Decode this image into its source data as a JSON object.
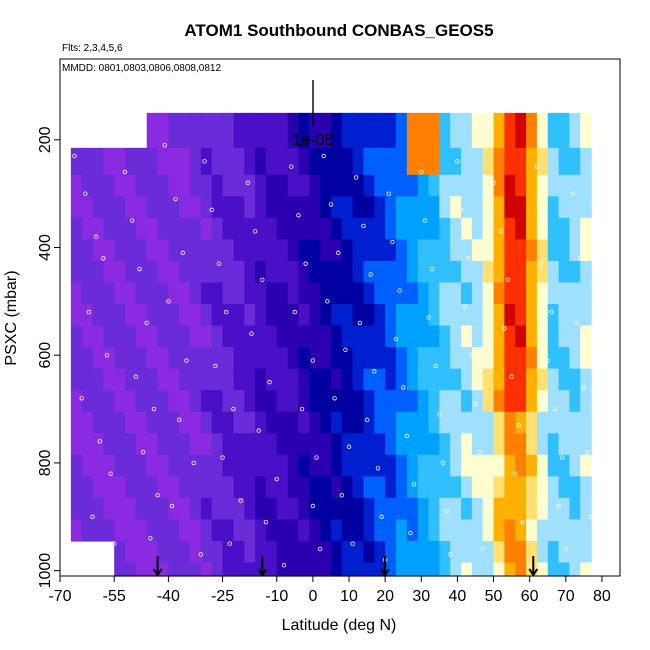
{
  "chart_data": {
    "type": "heatmap",
    "title": "ATOM1 Southbound CONBAS_GEOS5",
    "flights_label": "Flts: 2,3,4,5,6",
    "dates_label": "MMDD: 0801,0803,0806,0808,0812",
    "xlabel": "Latitude (deg N)",
    "ylabel": "PSXC (mbar)",
    "xlim": [
      -70,
      85
    ],
    "ylim": [
      1010,
      50
    ],
    "y_reversed": true,
    "x_ticks": [
      -70,
      -55,
      -40,
      -25,
      -10,
      0,
      10,
      20,
      30,
      40,
      50,
      60,
      70,
      80
    ],
    "y_ticks": [
      200,
      400,
      600,
      800,
      1000
    ],
    "scale_label": "1e-08",
    "marker_latitudes": [
      -43,
      -14,
      20,
      61
    ],
    "colormap": [
      "#8a2be2",
      "#6a2bd8",
      "#4a10c8",
      "#2a00b0",
      "#0000a0",
      "#0020d0",
      "#0060ff",
      "#00a0ff",
      "#30c0ff",
      "#a0e0ff",
      "#ffffd0",
      "#ffe070",
      "#ffb000",
      "#ff8000",
      "#ff3000",
      "#d00000"
    ],
    "color_value_range": [
      0,
      15
    ],
    "lat_bins": [
      -70,
      -67,
      -64,
      -61,
      -58,
      -55,
      -52,
      -49,
      -46,
      -43,
      -40,
      -37,
      -34,
      -31,
      -28,
      -25,
      -22,
      -19,
      -16,
      -13,
      -10,
      -7,
      -4,
      -1,
      2,
      5,
      8,
      11,
      14,
      17,
      20,
      23,
      26,
      29,
      32,
      35,
      38,
      41,
      44,
      47,
      50,
      53,
      56,
      59,
      62,
      65,
      68,
      71,
      74,
      77,
      80,
      83
    ],
    "pressure_bins": [
      150,
      215,
      265,
      305,
      345,
      385,
      425,
      465,
      505,
      545,
      585,
      625,
      665,
      705,
      745,
      785,
      825,
      865,
      905,
      945,
      985,
      1010
    ],
    "valid_lat_range": [
      -67,
      78
    ],
    "valid_pressure_range": [
      150,
      1010
    ],
    "data_points": [
      [
        -66,
        230
      ],
      [
        -63,
        300
      ],
      [
        -60,
        380
      ],
      [
        -58,
        420
      ],
      [
        -62,
        520
      ],
      [
        -57,
        600
      ],
      [
        -64,
        680
      ],
      [
        -59,
        760
      ],
      [
        -56,
        820
      ],
      [
        -61,
        900
      ],
      [
        -55,
        950
      ],
      [
        -52,
        260
      ],
      [
        -50,
        350
      ],
      [
        -48,
        440
      ],
      [
        -46,
        540
      ],
      [
        -49,
        640
      ],
      [
        -44,
        700
      ],
      [
        -47,
        780
      ],
      [
        -43,
        860
      ],
      [
        -45,
        940
      ],
      [
        -41,
        210
      ],
      [
        -38,
        310
      ],
      [
        -36,
        410
      ],
      [
        -40,
        500
      ],
      [
        -35,
        610
      ],
      [
        -37,
        720
      ],
      [
        -33,
        800
      ],
      [
        -39,
        880
      ],
      [
        -31,
        970
      ],
      [
        -30,
        240
      ],
      [
        -28,
        330
      ],
      [
        -26,
        430
      ],
      [
        -24,
        520
      ],
      [
        -27,
        620
      ],
      [
        -22,
        700
      ],
      [
        -25,
        790
      ],
      [
        -20,
        870
      ],
      [
        -23,
        950
      ],
      [
        -18,
        280
      ],
      [
        -16,
        370
      ],
      [
        -14,
        460
      ],
      [
        -17,
        560
      ],
      [
        -12,
        650
      ],
      [
        -15,
        740
      ],
      [
        -10,
        830
      ],
      [
        -13,
        910
      ],
      [
        -8,
        990
      ],
      [
        -6,
        250
      ],
      [
        -4,
        340
      ],
      [
        -2,
        430
      ],
      [
        -5,
        520
      ],
      [
        0,
        610
      ],
      [
        -3,
        700
      ],
      [
        1,
        790
      ],
      [
        0,
        880
      ],
      [
        2,
        960
      ],
      [
        3,
        230
      ],
      [
        5,
        320
      ],
      [
        7,
        410
      ],
      [
        4,
        500
      ],
      [
        9,
        590
      ],
      [
        6,
        680
      ],
      [
        10,
        770
      ],
      [
        8,
        860
      ],
      [
        11,
        950
      ],
      [
        12,
        270
      ],
      [
        14,
        360
      ],
      [
        16,
        450
      ],
      [
        13,
        540
      ],
      [
        17,
        630
      ],
      [
        15,
        720
      ],
      [
        18,
        810
      ],
      [
        19,
        900
      ],
      [
        20,
        980
      ],
      [
        21,
        300
      ],
      [
        22,
        390
      ],
      [
        24,
        480
      ],
      [
        23,
        570
      ],
      [
        25,
        660
      ],
      [
        26,
        750
      ],
      [
        28,
        840
      ],
      [
        27,
        930
      ],
      [
        30,
        260
      ],
      [
        31,
        350
      ],
      [
        33,
        440
      ],
      [
        32,
        530
      ],
      [
        34,
        620
      ],
      [
        35,
        710
      ],
      [
        36,
        800
      ],
      [
        37,
        890
      ],
      [
        38,
        970
      ],
      [
        40,
        240
      ],
      [
        41,
        330
      ],
      [
        43,
        420
      ],
      [
        42,
        510
      ],
      [
        44,
        600
      ],
      [
        45,
        690
      ],
      [
        46,
        780
      ],
      [
        48,
        870
      ],
      [
        47,
        960
      ],
      [
        50,
        280
      ],
      [
        52,
        370
      ],
      [
        54,
        460
      ],
      [
        53,
        550
      ],
      [
        55,
        640
      ],
      [
        57,
        730
      ],
      [
        56,
        820
      ],
      [
        58,
        910
      ],
      [
        60,
        990
      ],
      [
        62,
        250
      ],
      [
        64,
        340
      ],
      [
        63,
        430
      ],
      [
        66,
        520
      ],
      [
        65,
        610
      ],
      [
        67,
        700
      ],
      [
        69,
        790
      ],
      [
        68,
        880
      ],
      [
        70,
        960
      ],
      [
        72,
        300
      ],
      [
        74,
        420
      ],
      [
        73,
        540
      ],
      [
        75,
        660
      ],
      [
        76,
        780
      ],
      [
        77,
        900
      ]
    ]
  }
}
